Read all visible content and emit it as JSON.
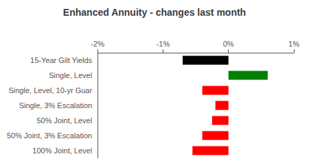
{
  "chart_data": {
    "type": "bar",
    "orientation": "horizontal",
    "title": "Enhanced Annuity - changes last month",
    "categories": [
      "15-Year Gilt Yields",
      "Single, Level",
      "Single, Level, 10-yr Guar",
      "Single, 3% Escalation",
      "50% Joint, Level",
      "50% Joint, 3% Escalation",
      "100% Joint, Level"
    ],
    "values": [
      -0.7,
      0.6,
      -0.4,
      -0.2,
      -0.25,
      -0.4,
      -0.55
    ],
    "colors": [
      "#000000",
      "#008000",
      "#ff0000",
      "#ff0000",
      "#ff0000",
      "#ff0000",
      "#ff0000"
    ],
    "xlim": [
      -2.0,
      1.0
    ],
    "xticks": [
      {
        "value": -2.0,
        "label": "-2%"
      },
      {
        "value": -1.0,
        "label": "-1%"
      },
      {
        "value": 0.0,
        "label": "0%"
      },
      {
        "value": 1.0,
        "label": "1%"
      }
    ],
    "grid": false
  }
}
